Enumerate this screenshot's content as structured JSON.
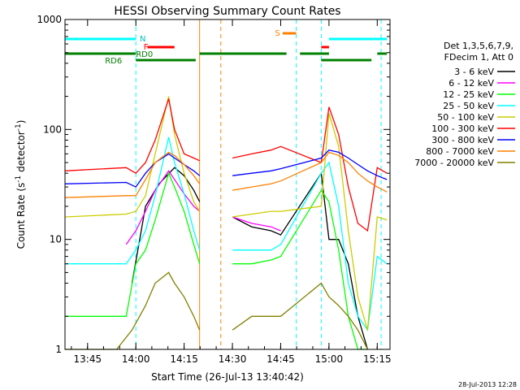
{
  "chart_data": {
    "type": "line",
    "title": "HESSI Observing Summary Count Rates",
    "xlabel": "Start Time (26-Jul-13 13:40:42)",
    "ylabel_prefix": "Count Rate (s",
    "ylabel_sup1": "-1",
    "ylabel_mid": " detector",
    "ylabel_sup2": "-1",
    "ylabel_suffix": ")",
    "yscale": "log",
    "ylim": [
      1,
      1000
    ],
    "xlim_minutes": [
      13.633,
      15.316
    ],
    "x_unit": "hours (decimal UT)",
    "xticks": [
      {
        "value": 13.75,
        "label": "13:45"
      },
      {
        "value": 14.0,
        "label": "14:00"
      },
      {
        "value": 14.25,
        "label": "14:15"
      },
      {
        "value": 14.5,
        "label": "14:30"
      },
      {
        "value": 14.75,
        "label": "14:45"
      },
      {
        "value": 15.0,
        "label": "15:00"
      },
      {
        "value": 15.25,
        "label": "15:15"
      }
    ],
    "yticks": [
      {
        "value": 1,
        "label": "1"
      },
      {
        "value": 10,
        "label": "10"
      },
      {
        "value": 100,
        "label": "100"
      },
      {
        "value": 1000,
        "label": "1000"
      }
    ],
    "legend_header": [
      "Det 1,3,5,6,7,9,",
      "FDecim 1, Att 0"
    ],
    "legend_position": "right",
    "flags": {
      "N_label": "N",
      "F_label": "F",
      "S_label": "S",
      "RD0_label": "RD0",
      "RD6_label": "RD6"
    },
    "gaps": [
      [
        14.33,
        14.44
      ],
      [
        14.83,
        14.96
      ]
    ],
    "series": [
      {
        "name": "3 - 6 keV",
        "color": "#000000",
        "x": [
          13.633,
          13.9,
          13.98,
          14.05,
          14.12,
          14.2,
          14.25,
          14.3,
          14.33,
          14.44,
          14.5,
          14.6,
          14.7,
          14.75,
          14.96,
          15.0,
          15.05,
          15.1,
          15.15,
          15.2,
          15.25,
          15.3
        ],
        "y": [
          null,
          null,
          4,
          20,
          32,
          45,
          38,
          28,
          22,
          null,
          16,
          13,
          12,
          11,
          40,
          10,
          10,
          6,
          2,
          1,
          null,
          null
        ]
      },
      {
        "name": "6 - 12 keV",
        "color": "#ff00ff",
        "x": [
          13.95,
          14.0,
          14.05,
          14.1,
          14.17,
          14.2,
          14.25,
          14.3,
          14.33,
          14.44,
          14.5,
          14.6,
          14.7,
          14.75
        ],
        "y": [
          9,
          12,
          18,
          28,
          42,
          35,
          26,
          20,
          18,
          null,
          16,
          14,
          13,
          12
        ]
      },
      {
        "name": "12 - 25 keV",
        "color": "#00ff00",
        "x": [
          13.633,
          13.95,
          14.0,
          14.05,
          14.1,
          14.17,
          14.2,
          14.25,
          14.3,
          14.33,
          14.44,
          14.5,
          14.6,
          14.7,
          14.75,
          14.96,
          15.0,
          15.05,
          15.1,
          15.15,
          15.2
        ],
        "y": [
          2,
          2,
          6,
          8,
          15,
          40,
          30,
          18,
          9,
          6,
          null,
          6,
          6,
          6.5,
          7,
          28,
          22,
          8,
          2,
          1,
          1
        ]
      },
      {
        "name": "25 - 50 keV",
        "color": "#00ffff",
        "x": [
          13.633,
          13.95,
          14.0,
          14.05,
          14.1,
          14.17,
          14.2,
          14.25,
          14.3,
          14.33,
          14.44,
          14.5,
          14.6,
          14.7,
          14.75,
          14.96,
          15.0,
          15.05,
          15.1,
          15.15,
          15.2,
          15.25,
          15.3
        ],
        "y": [
          6,
          6,
          8,
          12,
          25,
          85,
          50,
          26,
          12,
          8,
          null,
          8,
          8,
          8,
          9,
          40,
          50,
          20,
          4,
          2,
          1.5,
          7,
          6
        ]
      },
      {
        "name": "50 - 100 keV",
        "color": "#cccc00",
        "x": [
          13.633,
          13.95,
          14.0,
          14.05,
          14.1,
          14.17,
          14.2,
          14.25,
          14.3,
          14.33,
          14.44,
          14.5,
          14.6,
          14.7,
          14.75,
          14.96,
          15.0,
          15.05,
          15.1,
          15.15,
          15.2,
          15.25,
          15.3
        ],
        "y": [
          16,
          17,
          18,
          25,
          60,
          200,
          90,
          40,
          22,
          18,
          null,
          16,
          17,
          18,
          18,
          20,
          140,
          70,
          12,
          3,
          1.5,
          16,
          15
        ]
      },
      {
        "name": "100 - 300 keV",
        "color": "#ff0000",
        "x": [
          13.633,
          13.95,
          14.0,
          14.05,
          14.1,
          14.17,
          14.2,
          14.25,
          14.3,
          14.33,
          14.44,
          14.5,
          14.6,
          14.7,
          14.75,
          14.96,
          15.0,
          15.05,
          15.1,
          15.15,
          15.2,
          15.25,
          15.3
        ],
        "y": [
          42,
          45,
          40,
          50,
          80,
          190,
          100,
          60,
          55,
          52,
          null,
          55,
          60,
          65,
          70,
          50,
          160,
          90,
          30,
          14,
          12,
          45,
          40
        ]
      },
      {
        "name": "300 - 800 keV",
        "color": "#0000ff",
        "x": [
          13.633,
          13.95,
          14.0,
          14.05,
          14.1,
          14.17,
          14.2,
          14.25,
          14.3,
          14.33,
          14.44,
          14.5,
          14.6,
          14.7,
          14.75,
          14.96,
          15.0,
          15.05,
          15.1,
          15.15,
          15.2,
          15.25,
          15.3
        ],
        "y": [
          32,
          33,
          30,
          40,
          50,
          60,
          55,
          48,
          42,
          38,
          null,
          38,
          40,
          42,
          44,
          55,
          65,
          62,
          55,
          48,
          42,
          38,
          35
        ]
      },
      {
        "name": "800 - 7000 keV",
        "color": "#ff8000",
        "x": [
          13.633,
          13.95,
          14.0,
          14.05,
          14.1,
          14.17,
          14.2,
          14.25,
          14.3,
          14.33,
          14.44,
          14.5,
          14.6,
          14.7,
          14.75,
          14.96,
          15.0,
          15.05,
          15.1,
          15.15,
          15.2,
          15.25,
          15.3
        ],
        "y": [
          24,
          25,
          25,
          35,
          50,
          62,
          58,
          48,
          38,
          32,
          null,
          28,
          30,
          32,
          34,
          50,
          62,
          58,
          50,
          40,
          34,
          30,
          27
        ]
      },
      {
        "name": "7000 - 20000 keV",
        "color": "#808000",
        "x": [
          13.633,
          13.9,
          13.98,
          14.05,
          14.1,
          14.17,
          14.2,
          14.25,
          14.3,
          14.33,
          14.44,
          14.5,
          14.6,
          14.7,
          14.75,
          14.96,
          15.0,
          15.05,
          15.1,
          15.15,
          15.2
        ],
        "y": [
          1,
          1,
          1.5,
          2.5,
          4,
          5,
          4,
          3,
          2,
          1.5,
          null,
          1.5,
          2,
          2,
          2,
          4,
          3,
          2.5,
          2,
          1.5,
          1
        ]
      }
    ],
    "timestamp": "28-Jul-2013 12:28"
  }
}
